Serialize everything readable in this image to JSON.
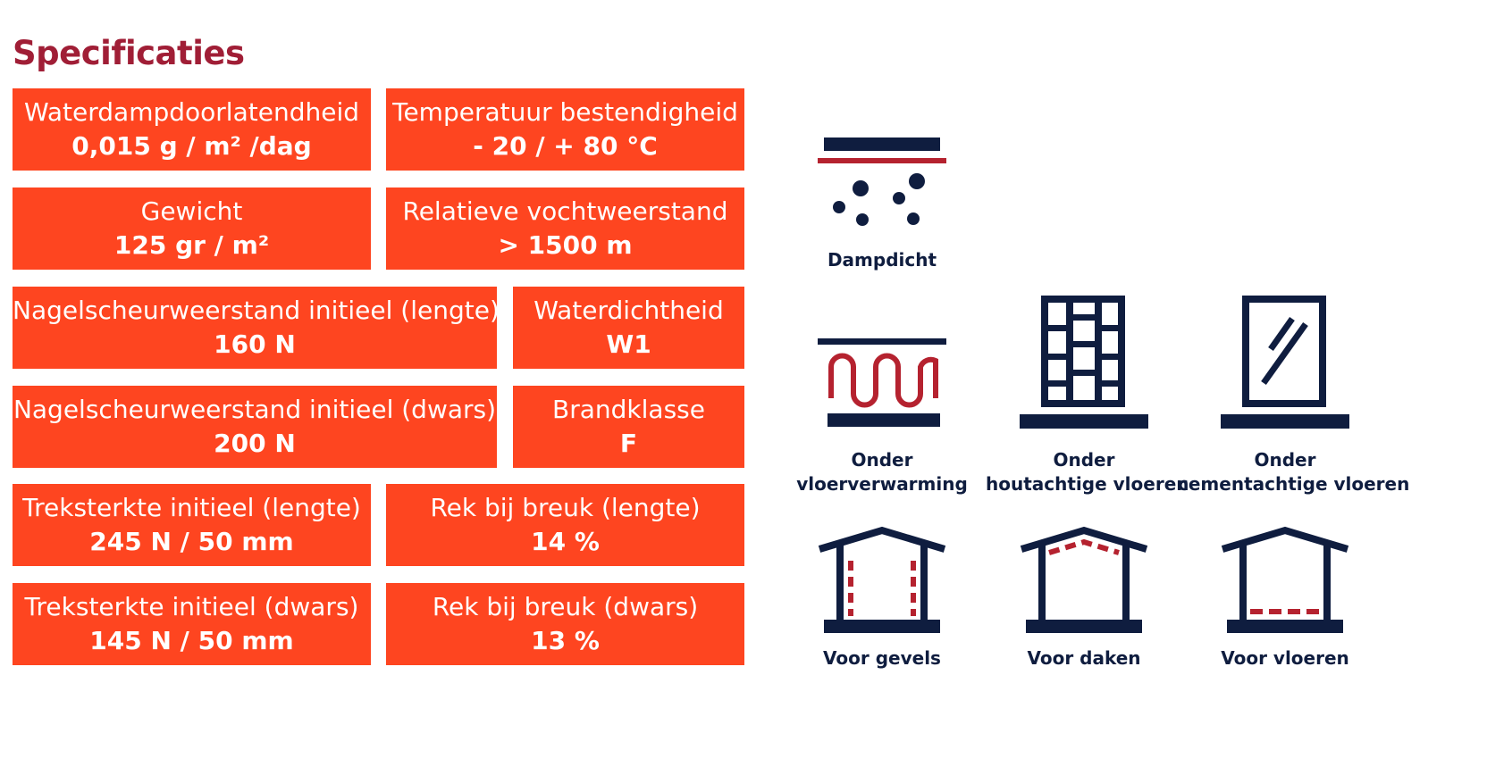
{
  "title": "Specificaties",
  "specs": [
    {
      "label": "Waterdampdoorlatendheid",
      "value": "0,015 g / m² /dag"
    },
    {
      "label": "Temperatuur bestendigheid",
      "value": "- 20 / + 80 °C"
    },
    {
      "label": "Gewicht",
      "value": "125 gr / m²"
    },
    {
      "label": "Relatieve vochtweerstand",
      "value": "> 1500 m"
    },
    {
      "label": "Nagelscheurweerstand initieel (lengte)",
      "value": "160 N"
    },
    {
      "label": "Waterdichtheid",
      "value": "W1"
    },
    {
      "label": "Nagelscheurweerstand initieel (dwars)",
      "value": "200 N"
    },
    {
      "label": "Brandklasse",
      "value": "F"
    },
    {
      "label": "Treksterkte initieel (lengte)",
      "value": "245 N / 50 mm"
    },
    {
      "label": "Rek bij breuk (lengte)",
      "value": "14 %"
    },
    {
      "label": "Treksterkte initieel (dwars)",
      "value": "145 N / 50 mm"
    },
    {
      "label": "Rek bij breuk (dwars)",
      "value": "13 %"
    }
  ],
  "icons": [
    {
      "name": "vapor-barrier-icon",
      "line1": "Dampdicht",
      "line2": ""
    },
    {
      "name": "underfloor-heating-icon",
      "line1": "Onder",
      "line2": "vloerverwarming"
    },
    {
      "name": "wood-floor-icon",
      "line1": "Onder",
      "line2": "houtachtige vloeren"
    },
    {
      "name": "cement-floor-icon",
      "line1": "Onder",
      "line2": "cementachtige vloeren"
    },
    {
      "name": "house-walls-icon",
      "line1": "Voor gevels",
      "line2": ""
    },
    {
      "name": "house-roof-icon",
      "line1": "Voor daken",
      "line2": ""
    },
    {
      "name": "house-floor-icon",
      "line1": "Voor vloeren",
      "line2": ""
    }
  ],
  "colors": {
    "accent": "#fe4520",
    "title": "#a01e36",
    "navy": "#0f1d3f",
    "red": "#b5222f"
  }
}
